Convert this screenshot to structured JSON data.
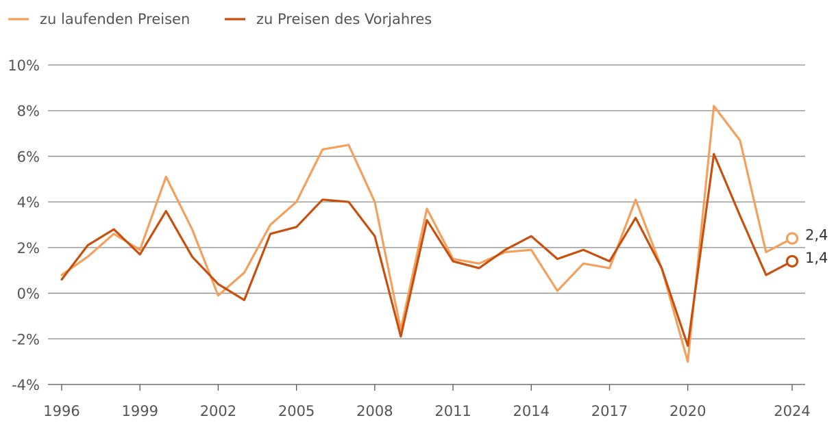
{
  "chart_data": {
    "type": "line",
    "title": "",
    "xlabel": "",
    "ylabel": "",
    "x": [
      1996,
      1997,
      1998,
      1999,
      2000,
      2001,
      2002,
      2003,
      2004,
      2005,
      2006,
      2007,
      2008,
      2009,
      2010,
      2011,
      2012,
      2013,
      2014,
      2015,
      2016,
      2017,
      2018,
      2019,
      2020,
      2021,
      2022,
      2023,
      2024
    ],
    "xticks": [
      1996,
      1999,
      2002,
      2005,
      2008,
      2011,
      2014,
      2017,
      2020,
      2024
    ],
    "xtick_labels": [
      "1996",
      "1999",
      "2002",
      "2005",
      "2008",
      "2011",
      "2014",
      "2017",
      "2020",
      "2024"
    ],
    "ylim": [
      -4,
      10
    ],
    "yticks": [
      -4,
      -2,
      0,
      2,
      4,
      6,
      8,
      10
    ],
    "ytick_labels": [
      "-4%",
      "-2%",
      "0%",
      "2%",
      "4%",
      "6%",
      "8%",
      "10%"
    ],
    "grid": true,
    "legend_position": "top-left",
    "series": [
      {
        "name": "zu laufenden Preisen",
        "color": "#f2a05c",
        "values": [
          0.8,
          1.6,
          2.6,
          1.9,
          5.1,
          2.8,
          -0.1,
          0.9,
          3.0,
          4.0,
          6.3,
          6.5,
          4.0,
          -1.6,
          3.7,
          1.5,
          1.3,
          1.8,
          1.9,
          0.1,
          1.3,
          1.1,
          4.1,
          1.1,
          -3.0,
          8.2,
          6.7,
          1.8,
          2.4
        ],
        "end_label": "2,4"
      },
      {
        "name": "zu Preisen des Vorjahres",
        "color": "#c8500e",
        "values": [
          0.6,
          2.1,
          2.8,
          1.7,
          3.6,
          1.6,
          0.4,
          -0.3,
          2.6,
          2.9,
          4.1,
          4.0,
          2.5,
          -1.9,
          3.2,
          1.4,
          1.1,
          1.9,
          2.5,
          1.5,
          1.9,
          1.4,
          3.3,
          1.1,
          -2.3,
          6.1,
          3.4,
          0.8,
          1.4
        ],
        "end_label": "1,4"
      }
    ]
  }
}
